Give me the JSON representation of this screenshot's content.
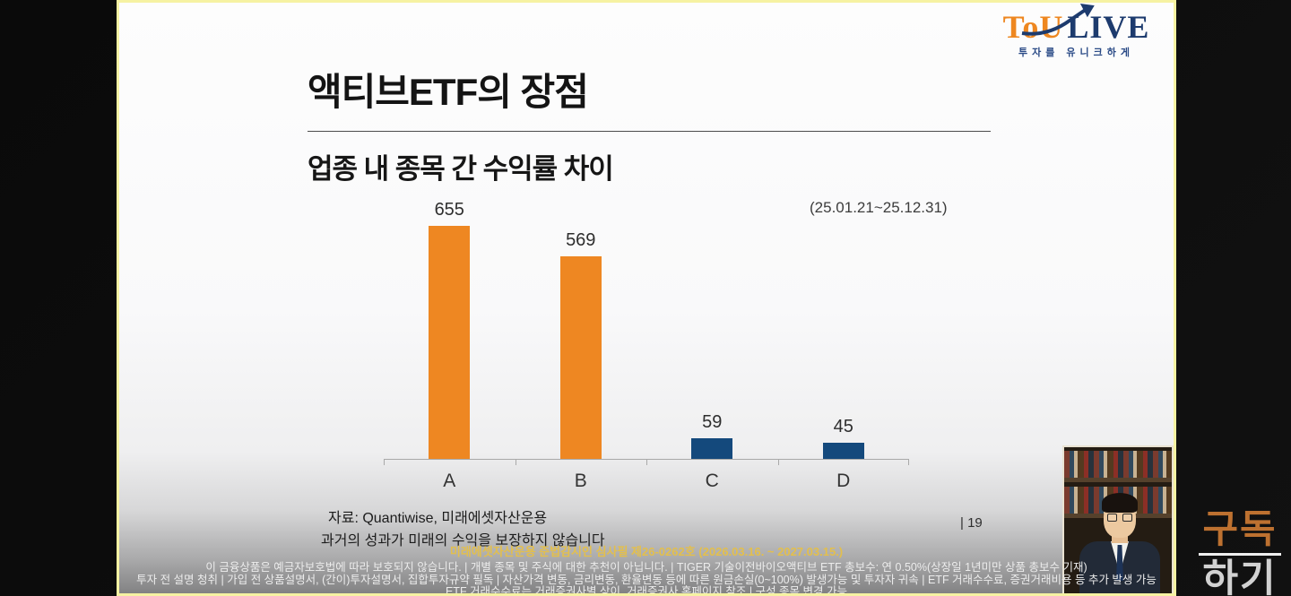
{
  "branding": {
    "logo_tou": "ToU",
    "logo_live": "LIVE",
    "logo_tagline": "투자를 유니크하게",
    "subscribe_top": "구독",
    "subscribe_bottom": "하기"
  },
  "slide": {
    "title": "액티브ETF의 장점",
    "subtitle": "업종 내 종목 간 수익률 차이",
    "period": "(25.01.21~25.12.31)",
    "source": "자료: Quantiwise, 미래에셋자산운용",
    "performance_note": "과거의 성과가 미래의 수익을 보장하지 않습니다",
    "page_number": "| 19"
  },
  "chart_data": {
    "type": "bar",
    "title": "업종 내 종목 간 수익률 차이",
    "annotation": "(25.01.21~25.12.31)",
    "categories": [
      "A",
      "B",
      "C",
      "D"
    ],
    "values": [
      655,
      569,
      59,
      45
    ],
    "bar_colors": [
      "#ee8722",
      "#ee8722",
      "#14497c",
      "#14497c"
    ],
    "xlabel": "",
    "ylabel": "",
    "ylim": [
      0,
      700
    ],
    "grid": false,
    "legend": false,
    "value_labels": true
  },
  "footer": {
    "compliance": "미래에셋자산운용 준법감시인 심사필 제26-0262호 (2026.03.16. ~ 2027.03.15.)",
    "disclaimer_line1": "이 금융상품은 예금자보호법에 따라 보호되지 않습니다. | 개별 종목 및 주식에 대한 추천이 아닙니다. | TIGER 기술이전바이오액티브 ETF 총보수: 연 0.50%(상장일 1년미만 상품 총보수 기재)",
    "disclaimer_line2": "투자 전 설명 청취 | 가입 전 상품설명서, (간이)투자설명서, 집합투자규약 필독 | 자산가격 변동, 금리변동, 환율변동 등에 따른 원금손실(0~100%) 발생가능 및 투자자 귀속 | ETF 거래수수료, 증권거래비용 등 추가 발생 가능",
    "disclaimer_line3": "ETF 거래수수료는 거래증권사별 상이. 거래증권사 홈페이지 참조 | 구성 종목 변경 가능"
  },
  "colors": {
    "bar_orange": "#ee8722",
    "bar_navy": "#14497c",
    "logo_orange": "#ee8720",
    "logo_navy": "#1d3b6e",
    "compliance_yellow": "#e3bf4d",
    "frame_border_yellow": "#f6f2a2"
  }
}
